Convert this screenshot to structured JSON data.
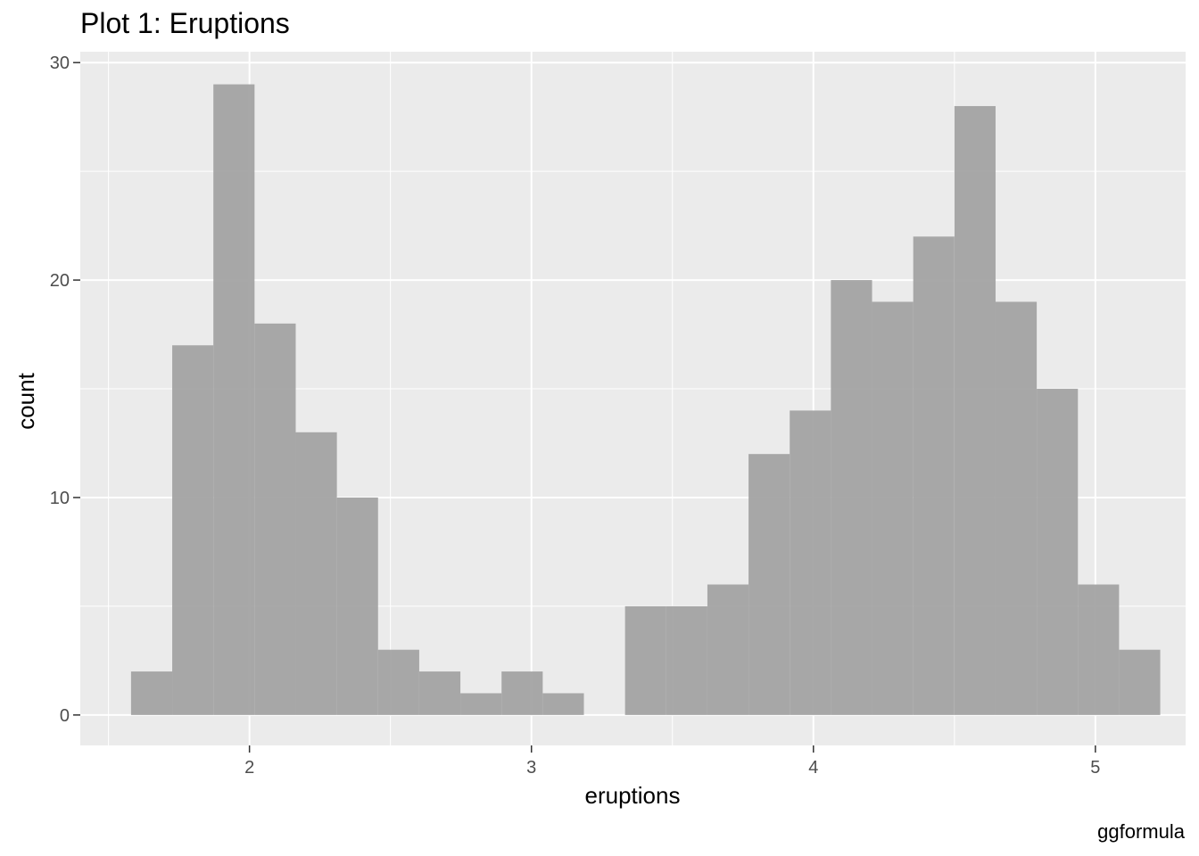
{
  "chart_data": {
    "type": "bar",
    "title": "Plot 1: Eruptions",
    "xlabel": "eruptions",
    "ylabel": "count",
    "caption": "ggformula",
    "xlim": [
      1.4,
      5.32
    ],
    "ylim": [
      -1.4,
      30.5
    ],
    "x_ticks": [
      2,
      3,
      4,
      5
    ],
    "x_tick_labels": [
      "2",
      "3",
      "4",
      "5"
    ],
    "y_ticks": [
      0,
      10,
      20,
      30
    ],
    "y_tick_labels": [
      "0",
      "10",
      "20",
      "30"
    ],
    "bin_width": 0.146,
    "bins": [
      {
        "x0": 1.58,
        "count": 2
      },
      {
        "x0": 1.726,
        "count": 17
      },
      {
        "x0": 1.872,
        "count": 29
      },
      {
        "x0": 2.018,
        "count": 18
      },
      {
        "x0": 2.164,
        "count": 13
      },
      {
        "x0": 2.31,
        "count": 10
      },
      {
        "x0": 2.456,
        "count": 3
      },
      {
        "x0": 2.602,
        "count": 2
      },
      {
        "x0": 2.748,
        "count": 1
      },
      {
        "x0": 2.894,
        "count": 2
      },
      {
        "x0": 3.04,
        "count": 1
      },
      {
        "x0": 3.186,
        "count": 0
      },
      {
        "x0": 3.332,
        "count": 5
      },
      {
        "x0": 3.478,
        "count": 5
      },
      {
        "x0": 3.624,
        "count": 6
      },
      {
        "x0": 3.77,
        "count": 12
      },
      {
        "x0": 3.916,
        "count": 14
      },
      {
        "x0": 4.062,
        "count": 20
      },
      {
        "x0": 4.208,
        "count": 19
      },
      {
        "x0": 4.354,
        "count": 22
      },
      {
        "x0": 4.5,
        "count": 28
      },
      {
        "x0": 4.646,
        "count": 19
      },
      {
        "x0": 4.792,
        "count": 15
      },
      {
        "x0": 4.938,
        "count": 6
      },
      {
        "x0": 5.084,
        "count": 3
      }
    ],
    "grid": true,
    "colors": {
      "panel": "#ebebeb",
      "gridline": "#ffffff",
      "bar": "#a3a3a3",
      "tick": "#333333"
    }
  }
}
